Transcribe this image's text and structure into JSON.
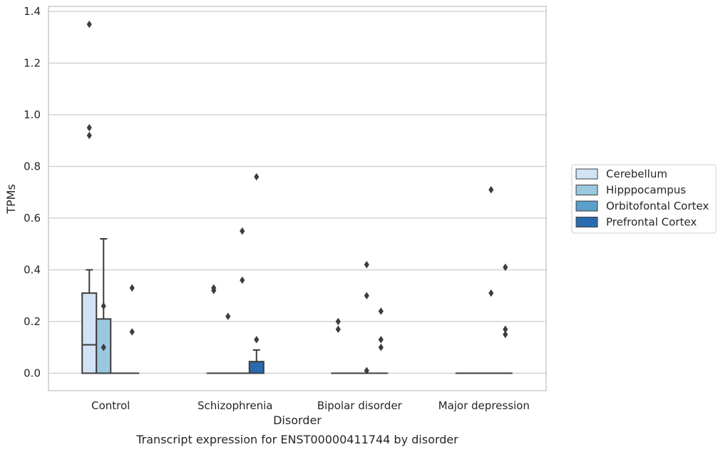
{
  "chart_data": {
    "type": "box",
    "caption": "Transcript expression for ENST00000411744 by disorder",
    "xlabel": "Disorder",
    "ylabel": "TPMs",
    "ylim": [
      -0.065,
      1.42
    ],
    "yticks": [
      0.0,
      0.2,
      0.4,
      0.6,
      0.8,
      1.0,
      1.2,
      1.4
    ],
    "ytick_labels": [
      "0.0",
      "0.2",
      "0.4",
      "0.6",
      "0.8",
      "1.0",
      "1.2",
      "1.4"
    ],
    "grid": "horizontal",
    "legend_position": "right",
    "categories": [
      "Control",
      "Schizophrenia",
      "Bipolar disorder",
      "Major depression"
    ],
    "series": [
      {
        "name": "Cerebellum",
        "color": "#d2e3f3"
      },
      {
        "name": "Hipppocampus",
        "color": "#9ac8e0"
      },
      {
        "name": "Orbitofontal Cortex",
        "color": "#5a9fcc"
      },
      {
        "name": "Prefrontal Cortex",
        "color": "#2a6bb0"
      }
    ],
    "boxes": [
      {
        "category": 0,
        "series": 0,
        "q1": 0.0,
        "median": 0.11,
        "q3": 0.31,
        "whislo": 0.0,
        "whishi": 0.4,
        "fliers": [
          1.35,
          0.95,
          0.92
        ]
      },
      {
        "category": 0,
        "series": 1,
        "q1": 0.0,
        "median": 0.0,
        "q3": 0.21,
        "whislo": 0.0,
        "whishi": 0.52,
        "fliers": [
          0.26,
          0.1
        ]
      },
      {
        "category": 0,
        "series": 2,
        "q1": 0.0,
        "median": 0.0,
        "q3": 0.0,
        "whislo": 0.0,
        "whishi": 0.0,
        "fliers": []
      },
      {
        "category": 0,
        "series": 3,
        "q1": 0.0,
        "median": 0.0,
        "q3": 0.0,
        "whislo": 0.0,
        "whishi": 0.0,
        "fliers": [
          0.33,
          0.16
        ]
      },
      {
        "category": 1,
        "series": 0,
        "q1": 0.0,
        "median": 0.0,
        "q3": 0.0,
        "whislo": 0.0,
        "whishi": 0.0,
        "fliers": [
          0.33,
          0.32
        ]
      },
      {
        "category": 1,
        "series": 1,
        "q1": 0.0,
        "median": 0.0,
        "q3": 0.0,
        "whislo": 0.0,
        "whishi": 0.0,
        "fliers": [
          0.22
        ]
      },
      {
        "category": 1,
        "series": 2,
        "q1": 0.0,
        "median": 0.0,
        "q3": 0.0,
        "whislo": 0.0,
        "whishi": 0.0,
        "fliers": [
          0.36,
          0.55
        ]
      },
      {
        "category": 1,
        "series": 3,
        "q1": 0.0,
        "median": 0.0,
        "q3": 0.045,
        "whislo": 0.0,
        "whishi": 0.09,
        "fliers": [
          0.76,
          0.13
        ]
      },
      {
        "category": 2,
        "series": 0,
        "q1": 0.0,
        "median": 0.0,
        "q3": 0.0,
        "whislo": 0.0,
        "whishi": 0.0,
        "fliers": [
          0.2,
          0.17
        ]
      },
      {
        "category": 2,
        "series": 1,
        "q1": 0.0,
        "median": 0.0,
        "q3": 0.0,
        "whislo": 0.0,
        "whishi": 0.0,
        "fliers": []
      },
      {
        "category": 2,
        "series": 2,
        "q1": 0.0,
        "median": 0.0,
        "q3": 0.0,
        "whislo": 0.0,
        "whishi": 0.0,
        "fliers": [
          0.42,
          0.3,
          0.01
        ]
      },
      {
        "category": 2,
        "series": 3,
        "q1": 0.0,
        "median": 0.0,
        "q3": 0.0,
        "whislo": 0.0,
        "whishi": 0.0,
        "fliers": [
          0.24,
          0.13,
          0.1
        ]
      },
      {
        "category": 3,
        "series": 0,
        "q1": 0.0,
        "median": 0.0,
        "q3": 0.0,
        "whislo": 0.0,
        "whishi": 0.0,
        "fliers": []
      },
      {
        "category": 3,
        "series": 1,
        "q1": 0.0,
        "median": 0.0,
        "q3": 0.0,
        "whislo": 0.0,
        "whishi": 0.0,
        "fliers": []
      },
      {
        "category": 3,
        "series": 2,
        "q1": 0.0,
        "median": 0.0,
        "q3": 0.0,
        "whislo": 0.0,
        "whishi": 0.0,
        "fliers": [
          0.71,
          0.31
        ]
      },
      {
        "category": 3,
        "series": 3,
        "q1": 0.0,
        "median": 0.0,
        "q3": 0.0,
        "whislo": 0.0,
        "whishi": 0.0,
        "fliers": [
          0.41,
          0.17,
          0.15
        ]
      }
    ]
  }
}
